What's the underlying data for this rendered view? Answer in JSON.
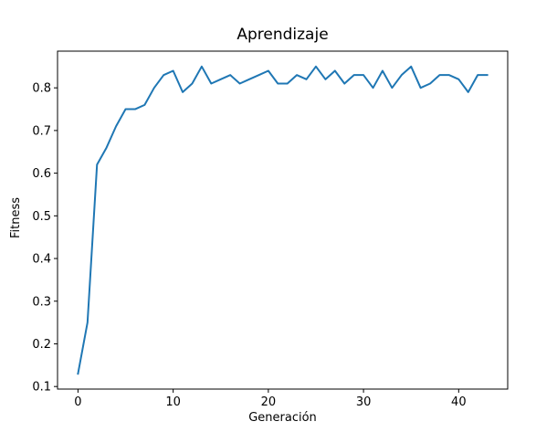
{
  "chart_data": {
    "type": "line",
    "title": "Aprendizaje",
    "xlabel": "Generación",
    "ylabel": "Fitness",
    "xlim": [
      -2.15,
      45.15
    ],
    "ylim": [
      0.094,
      0.886
    ],
    "xticks": [
      0,
      10,
      20,
      30,
      40
    ],
    "yticks": [
      0.1,
      0.2,
      0.3,
      0.4,
      0.5,
      0.6,
      0.7,
      0.8
    ],
    "ytick_labels": [
      "0.1",
      "0.2",
      "0.3",
      "0.4",
      "0.5",
      "0.6",
      "0.7",
      "0.8"
    ],
    "grid": false,
    "legend": "none",
    "series": [
      {
        "color": "#1f77b4",
        "x": [
          0,
          1,
          2,
          3,
          4,
          5,
          6,
          7,
          8,
          9,
          10,
          11,
          12,
          13,
          14,
          15,
          16,
          17,
          18,
          19,
          20,
          21,
          22,
          23,
          24,
          25,
          26,
          27,
          28,
          29,
          30,
          31,
          32,
          33,
          34,
          35,
          36,
          37,
          38,
          39,
          40,
          41,
          42,
          43
        ],
        "y": [
          0.13,
          0.25,
          0.62,
          0.66,
          0.71,
          0.75,
          0.75,
          0.76,
          0.8,
          0.83,
          0.84,
          0.79,
          0.81,
          0.85,
          0.81,
          0.82,
          0.83,
          0.81,
          0.82,
          0.83,
          0.84,
          0.81,
          0.81,
          0.83,
          0.82,
          0.85,
          0.82,
          0.84,
          0.81,
          0.83,
          0.83,
          0.8,
          0.84,
          0.8,
          0.83,
          0.85,
          0.8,
          0.81,
          0.83,
          0.83,
          0.82,
          0.79,
          0.83,
          0.83
        ]
      }
    ]
  }
}
